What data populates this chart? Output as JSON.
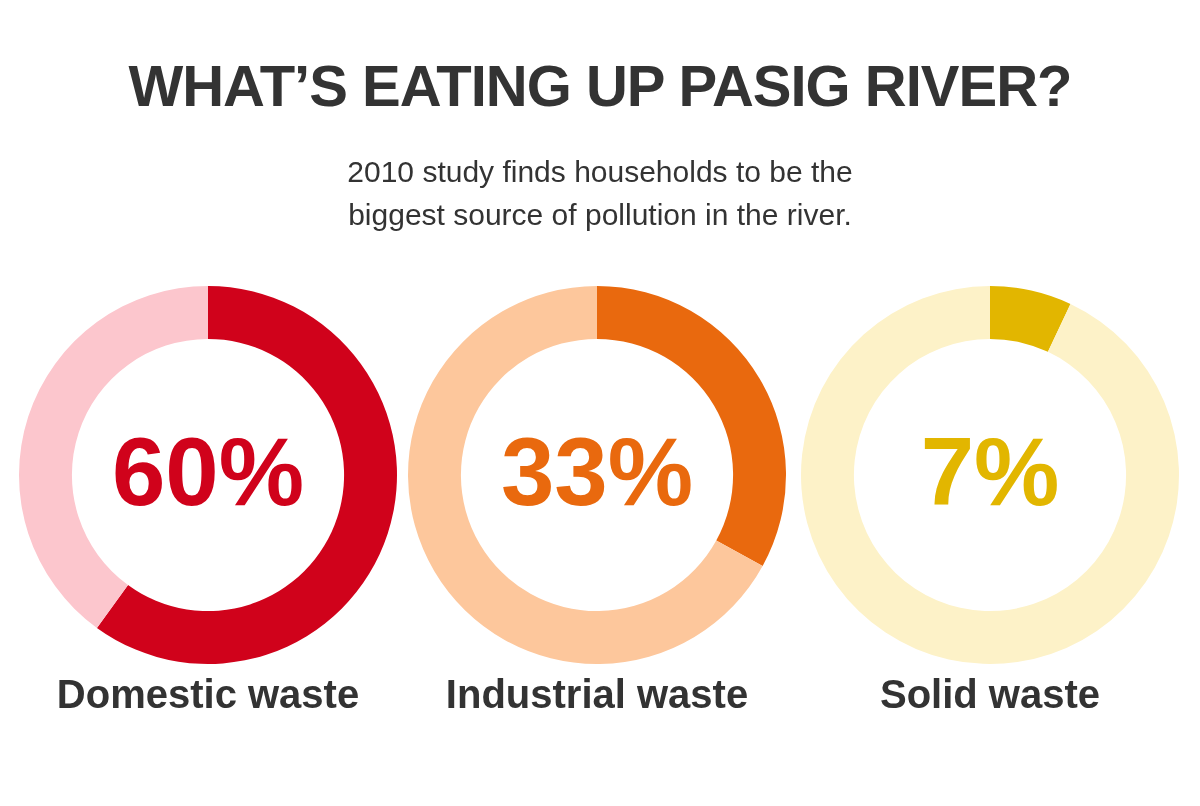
{
  "chart_data": [
    {
      "type": "other",
      "title": "WHAT’S EATING UP PASIG RIVER?",
      "subtitle": "2010 study finds households to be the biggest source of pollution in the river."
    },
    {
      "type": "donut",
      "xlabel": "Domestic waste",
      "categories": [
        null,
        null
      ],
      "values": [
        60,
        40
      ],
      "colors": [
        "#d0021b",
        "#fcc6cd"
      ],
      "value_labels": [
        "60%",
        null
      ]
    },
    {
      "type": "donut",
      "xlabel": "Industrial waste",
      "categories": [
        null,
        null
      ],
      "values": [
        33,
        67
      ],
      "colors": [
        "#e9690e",
        "#fdc79c"
      ],
      "value_labels": [
        "33%",
        null
      ]
    },
    {
      "type": "donut",
      "xlabel": "Solid waste",
      "categories": [
        null,
        null
      ],
      "values": [
        7,
        93
      ],
      "colors": [
        "#e2b600",
        "#fdf2c8"
      ],
      "value_labels": [
        "7%",
        null
      ]
    }
  ]
}
